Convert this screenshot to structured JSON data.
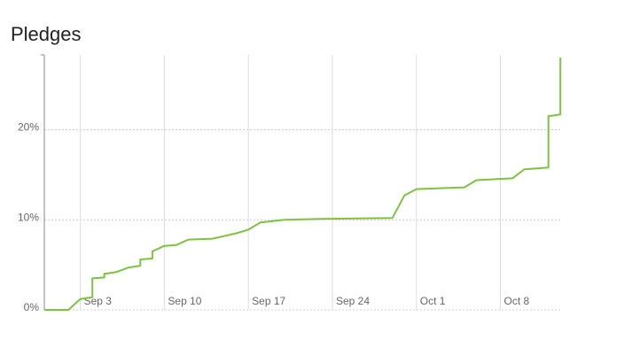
{
  "chart_data": {
    "type": "line",
    "title": "Pledges",
    "x": [
      "Aug 31",
      "Sep 2",
      "Sep 3",
      "Sep 4",
      "Sep 4",
      "Sep 5",
      "Sep 5",
      "Sep 6",
      "Sep 7",
      "Sep 8",
      "Sep 8",
      "Sep 9",
      "Sep 9",
      "Sep 10",
      "Sep 11",
      "Sep 12",
      "Sep 14",
      "Sep 16",
      "Sep 17",
      "Sep 18",
      "Sep 20",
      "Sep 23",
      "Sep 29",
      "Sep 30",
      "Oct 1",
      "Oct 5",
      "Oct 6",
      "Oct 9",
      "Oct 10",
      "Oct 12",
      "Oct 12",
      "Oct 12",
      "Oct 13",
      "Oct 13"
    ],
    "values": [
      0,
      0,
      1.2,
      1.4,
      3.5,
      3.6,
      4.0,
      4.2,
      4.7,
      4.9,
      5.6,
      5.7,
      6.5,
      7.1,
      7.2,
      7.8,
      7.9,
      8.5,
      8.9,
      9.7,
      10.0,
      10.1,
      10.2,
      12.7,
      13.4,
      13.6,
      14.4,
      14.6,
      15.6,
      15.8,
      16.3,
      21.5,
      21.7,
      28.0
    ],
    "color": "#7dc242",
    "xlim": [
      "Aug 31",
      "Oct 13"
    ],
    "xticks": [
      "Sep 3",
      "Sep 10",
      "Sep 17",
      "Sep 24",
      "Oct 1",
      "Oct 8"
    ],
    "ylim": [
      0,
      28.3
    ],
    "yticks": [
      {
        "value": 0,
        "label": "0%"
      },
      {
        "value": 10,
        "label": "10%"
      },
      {
        "value": 20,
        "label": "20%"
      }
    ],
    "grid": true
  }
}
